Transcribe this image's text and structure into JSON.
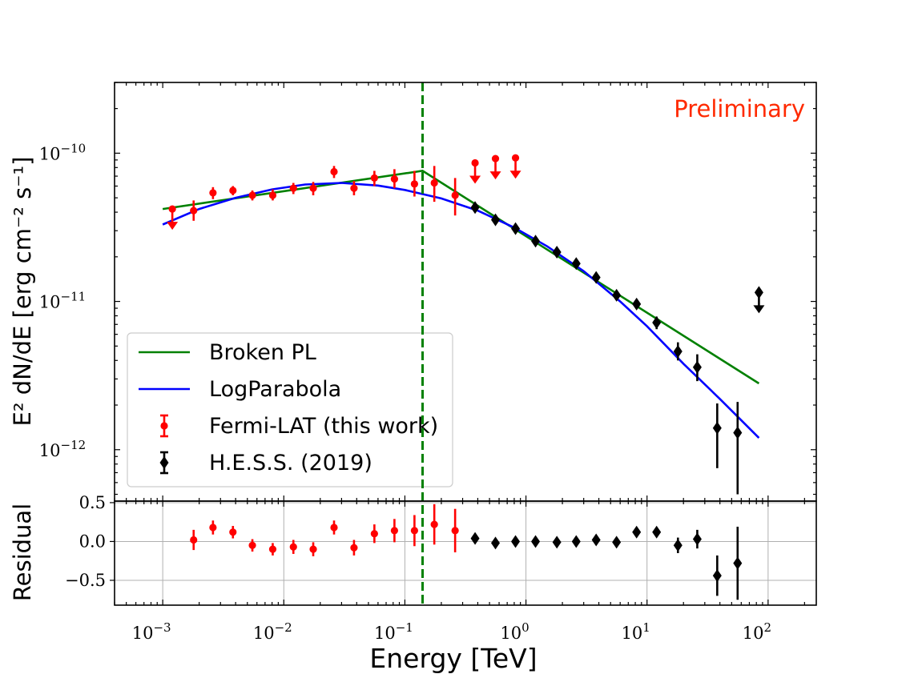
{
  "chart_data": {
    "type": "scatter",
    "annotation": "Preliminary",
    "xlabel": "Energy [TeV]",
    "xscale": "log",
    "xlim": [
      0.0004,
      250
    ],
    "break_energy_tev": 0.14,
    "top_panel": {
      "ylabel": "E² dN/dE [erg cm⁻² s⁻¹]",
      "yscale": "log",
      "ylim": [
        4.5e-13,
        3e-10
      ],
      "ytick_labels": [
        {
          "value": 1e-10,
          "base": "10",
          "exp": "−10"
        },
        {
          "value": 1e-11,
          "base": "10",
          "exp": "−11"
        },
        {
          "value": 1e-12,
          "base": "10",
          "exp": "−12"
        }
      ],
      "series": [
        {
          "name": "Fermi-LAT (this work)",
          "color": "#ff0000",
          "marker": "circle",
          "points": [
            {
              "x": 0.0018,
              "y": 4.1e-11,
              "lo": 3.5e-11,
              "hi": 4.8e-11
            },
            {
              "x": 0.0026,
              "y": 5.4e-11,
              "lo": 4.9e-11,
              "hi": 5.9e-11
            },
            {
              "x": 0.0038,
              "y": 5.6e-11,
              "lo": 5.2e-11,
              "hi": 6e-11
            },
            {
              "x": 0.0055,
              "y": 5.2e-11,
              "lo": 4.8e-11,
              "hi": 5.6e-11
            },
            {
              "x": 0.0081,
              "y": 5.2e-11,
              "lo": 4.8e-11,
              "hi": 5.7e-11
            },
            {
              "x": 0.012,
              "y": 5.8e-11,
              "lo": 5.3e-11,
              "hi": 6.3e-11
            },
            {
              "x": 0.0175,
              "y": 5.8e-11,
              "lo": 5.2e-11,
              "hi": 6.4e-11
            },
            {
              "x": 0.026,
              "y": 7.5e-11,
              "lo": 6.8e-11,
              "hi": 8.2e-11
            },
            {
              "x": 0.038,
              "y": 5.8e-11,
              "lo": 5.2e-11,
              "hi": 6.5e-11
            },
            {
              "x": 0.056,
              "y": 6.8e-11,
              "lo": 6e-11,
              "hi": 7.6e-11
            },
            {
              "x": 0.082,
              "y": 6.7e-11,
              "lo": 5.8e-11,
              "hi": 7.8e-11
            },
            {
              "x": 0.12,
              "y": 6.2e-11,
              "lo": 5.1e-11,
              "hi": 7.6e-11
            },
            {
              "x": 0.175,
              "y": 6.3e-11,
              "lo": 4.7e-11,
              "hi": 8.2e-11
            },
            {
              "x": 0.26,
              "y": 5.2e-11,
              "lo": 3.8e-11,
              "hi": 6.8e-11
            }
          ],
          "upper_limits": [
            {
              "x": 0.0012,
              "y": 4.2e-11
            },
            {
              "x": 0.38,
              "y": 8.6e-11
            },
            {
              "x": 0.56,
              "y": 9.2e-11
            },
            {
              "x": 0.82,
              "y": 9.3e-11
            }
          ]
        },
        {
          "name": "H.E.S.S. (2019)",
          "color": "#000000",
          "marker": "diamond",
          "points": [
            {
              "x": 0.38,
              "y": 4.3e-11,
              "lo": 4e-11,
              "hi": 4.6e-11
            },
            {
              "x": 0.56,
              "y": 3.55e-11,
              "lo": 3.35e-11,
              "hi": 3.75e-11
            },
            {
              "x": 0.82,
              "y": 3.1e-11,
              "lo": 2.9e-11,
              "hi": 3.3e-11
            },
            {
              "x": 1.2,
              "y": 2.55e-11,
              "lo": 2.4e-11,
              "hi": 2.7e-11
            },
            {
              "x": 1.8,
              "y": 2.15e-11,
              "lo": 2e-11,
              "hi": 2.3e-11
            },
            {
              "x": 2.6,
              "y": 1.8e-11,
              "lo": 1.68e-11,
              "hi": 1.92e-11
            },
            {
              "x": 3.8,
              "y": 1.45e-11,
              "lo": 1.35e-11,
              "hi": 1.55e-11
            },
            {
              "x": 5.6,
              "y": 1.1e-11,
              "lo": 1.02e-11,
              "hi": 1.18e-11
            },
            {
              "x": 8.2,
              "y": 9.6e-12,
              "lo": 8.9e-12,
              "hi": 1.03e-11
            },
            {
              "x": 12,
              "y": 7.2e-12,
              "lo": 6.5e-12,
              "hi": 7.9e-12
            },
            {
              "x": 18,
              "y": 4.6e-12,
              "lo": 4e-12,
              "hi": 5.3e-12
            },
            {
              "x": 26,
              "y": 3.6e-12,
              "lo": 2.9e-12,
              "hi": 4.4e-12
            },
            {
              "x": 38,
              "y": 1.4e-12,
              "lo": 7.5e-13,
              "hi": 2.05e-12
            },
            {
              "x": 56,
              "y": 1.3e-12,
              "lo": 5e-13,
              "hi": 2.1e-12
            }
          ],
          "upper_limits": [
            {
              "x": 84,
              "y": 1.15e-11
            }
          ]
        }
      ],
      "models": [
        {
          "name": "Broken PL",
          "color": "#008000",
          "x": [
            0.001,
            0.14,
            84
          ],
          "y": [
            4.2e-11,
            7.6e-11,
            2.8e-12
          ]
        },
        {
          "name": "LogParabola",
          "color": "#0000ff",
          "x": [
            0.001,
            0.002,
            0.004,
            0.008,
            0.015,
            0.03,
            0.06,
            0.1,
            0.2,
            0.4,
            0.8,
            1.5,
            3,
            6,
            10,
            20,
            40,
            84
          ],
          "y": [
            3.3e-11,
            4.2e-11,
            5e-11,
            5.7e-11,
            6.15e-11,
            6.3e-11,
            6.05e-11,
            5.65e-11,
            4.95e-11,
            4.1e-11,
            3.15e-11,
            2.35e-11,
            1.6e-11,
            1e-11,
            6.8e-12,
            3.8e-12,
            2.2e-12,
            1.2e-12
          ]
        }
      ]
    },
    "residual_panel": {
      "ylabel": "Residual",
      "ylim": [
        -0.82,
        0.52
      ],
      "yticks": [
        0.5,
        0.0,
        -0.5
      ],
      "ytick_labels": [
        "0.5",
        "0.0",
        "−0.5"
      ],
      "series": [
        {
          "name": "Fermi-LAT (this work)",
          "color": "#ff0000",
          "marker": "circle",
          "points": [
            {
              "x": 0.0018,
              "y": 0.02,
              "err": 0.13
            },
            {
              "x": 0.0026,
              "y": 0.18,
              "err": 0.09
            },
            {
              "x": 0.0038,
              "y": 0.12,
              "err": 0.08
            },
            {
              "x": 0.0055,
              "y": -0.05,
              "err": 0.08
            },
            {
              "x": 0.0081,
              "y": -0.1,
              "err": 0.08
            },
            {
              "x": 0.012,
              "y": -0.07,
              "err": 0.09
            },
            {
              "x": 0.0175,
              "y": -0.1,
              "err": 0.09
            },
            {
              "x": 0.026,
              "y": 0.18,
              "err": 0.09
            },
            {
              "x": 0.038,
              "y": -0.08,
              "err": 0.1
            },
            {
              "x": 0.056,
              "y": 0.1,
              "err": 0.12
            },
            {
              "x": 0.082,
              "y": 0.14,
              "err": 0.15
            },
            {
              "x": 0.12,
              "y": 0.14,
              "err": 0.2
            },
            {
              "x": 0.175,
              "y": 0.22,
              "err": 0.26
            },
            {
              "x": 0.26,
              "y": 0.14,
              "err": 0.28
            }
          ]
        },
        {
          "name": "H.E.S.S. (2019)",
          "color": "#000000",
          "marker": "diamond",
          "points": [
            {
              "x": 0.38,
              "y": 0.04,
              "err": 0.04
            },
            {
              "x": 0.56,
              "y": -0.02,
              "err": 0.03
            },
            {
              "x": 0.82,
              "y": 0.0,
              "err": 0.03
            },
            {
              "x": 1.2,
              "y": 0.0,
              "err": 0.03
            },
            {
              "x": 1.8,
              "y": -0.01,
              "err": 0.03
            },
            {
              "x": 2.6,
              "y": 0.0,
              "err": 0.03
            },
            {
              "x": 3.8,
              "y": 0.02,
              "err": 0.03
            },
            {
              "x": 5.6,
              "y": -0.01,
              "err": 0.03
            },
            {
              "x": 8.2,
              "y": 0.12,
              "err": 0.04
            },
            {
              "x": 12,
              "y": 0.12,
              "err": 0.06
            },
            {
              "x": 18,
              "y": -0.05,
              "err": 0.1
            },
            {
              "x": 26,
              "y": 0.03,
              "err": 0.12
            },
            {
              "x": 38,
              "y": -0.44,
              "err": 0.26
            },
            {
              "x": 56,
              "y": -0.28,
              "err": 0.47
            }
          ]
        }
      ]
    },
    "xtick_labels": [
      {
        "value": 0.001,
        "base": "10",
        "exp": "−3"
      },
      {
        "value": 0.01,
        "base": "10",
        "exp": "−2"
      },
      {
        "value": 0.1,
        "base": "10",
        "exp": "−1"
      },
      {
        "value": 1,
        "base": "10",
        "exp": "0"
      },
      {
        "value": 10,
        "base": "10",
        "exp": "1"
      },
      {
        "value": 100,
        "base": "10",
        "exp": "2"
      }
    ],
    "legend": {
      "position": "lower-left",
      "entries": [
        "Broken PL",
        "LogParabola",
        "Fermi-LAT (this work)",
        "H.E.S.S. (2019)"
      ]
    },
    "colors": {
      "fermi": "#ff0000",
      "hess": "#000000",
      "broken_pl": "#008000",
      "logparabola": "#0000ff",
      "break_line": "#008000",
      "annotation": "#ff2a00",
      "grid": "#b0b0b0"
    }
  }
}
